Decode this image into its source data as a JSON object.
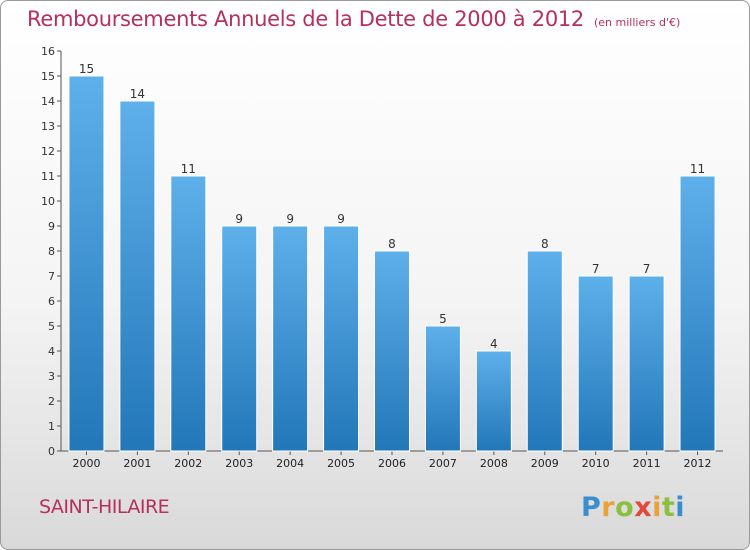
{
  "title": "Remboursements Annuels de la Dette de 2000 à 2012",
  "subtitle": "(en milliers d'€)",
  "commune": "SAINT-HILAIRE",
  "logo_text": "Proxiti",
  "colors": {
    "title": "#b5305a",
    "bar_light": "#5eb0ea",
    "bar_dark": "#2277b8"
  },
  "chart_data": {
    "type": "bar",
    "title": "Remboursements Annuels de la Dette de 2000 à 2012",
    "subtitle": "(en milliers d'€)",
    "categories": [
      "2000",
      "2001",
      "2002",
      "2003",
      "2004",
      "2005",
      "2006",
      "2007",
      "2008",
      "2009",
      "2010",
      "2011",
      "2012"
    ],
    "values": [
      15,
      14,
      11,
      9,
      9,
      9,
      8,
      5,
      4,
      8,
      7,
      7,
      11
    ],
    "ylim": [
      0,
      16
    ],
    "yticks": [
      0,
      1,
      2,
      3,
      4,
      5,
      6,
      7,
      8,
      9,
      10,
      11,
      12,
      13,
      14,
      15,
      16
    ],
    "grid": false,
    "data_labels": true
  }
}
